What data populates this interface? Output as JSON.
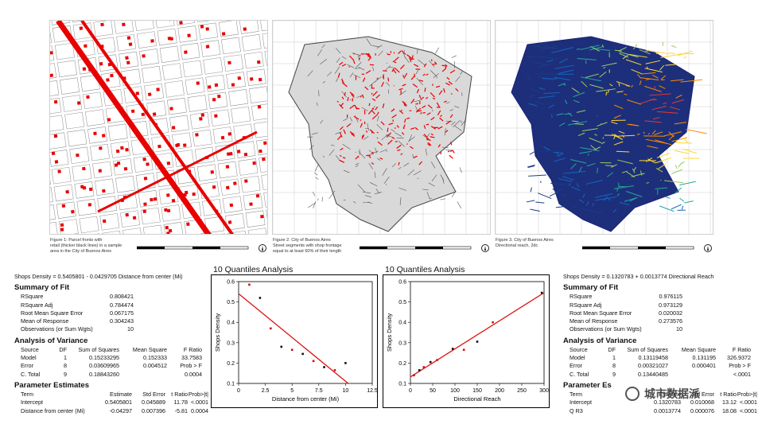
{
  "figures": {
    "fig1": {
      "caption": [
        "Figure 1: Parcel fronts with",
        "retail (thicker black lines) in a sample",
        "area in the City of Buenos Aires"
      ]
    },
    "fig2": {
      "caption": [
        "Figure 2. City of Buenos Aires",
        "Street segments with shop frontage",
        "equal to at least 60% of their length"
      ]
    },
    "fig3": {
      "caption": [
        "Figure 3. City of Buenos Aires",
        "Directional reach, 2dc"
      ]
    }
  },
  "left_stats": {
    "equation": "Shops Density = 0.5405801 - 0.0429705 Distance from center (Mi)",
    "fit_title": "Summary of Fit",
    "fit": [
      {
        "label": "RSquare",
        "value": "0.808421"
      },
      {
        "label": "RSquare Adj",
        "value": "0.784474"
      },
      {
        "label": "Root Mean Square Error",
        "value": "0.067175"
      },
      {
        "label": "Mean of Response",
        "value": "0.304243"
      },
      {
        "label": "Observations (or Sum Wgts)",
        "value": "10"
      }
    ],
    "anova_title": "Analysis of Variance",
    "anova_header": [
      "Source",
      "DF",
      "Sum of Squares",
      "Mean Square",
      "F Ratio"
    ],
    "anova": [
      [
        "Model",
        "1",
        "0.15233295",
        "0.152333",
        "33.7583"
      ],
      [
        "Error",
        "8",
        "0.03609965",
        "0.004512",
        "Prob > F"
      ],
      [
        "C. Total",
        "9",
        "0.18843260",
        "",
        "0.0004"
      ]
    ],
    "param_title": "Parameter Estimates",
    "param_header": [
      "Term",
      "Estimate",
      "Std Error",
      "t Ratio",
      "Prob>|t|"
    ],
    "params": [
      [
        "Intercept",
        "0.5405801",
        "0.045889",
        "11.78",
        "<.0001"
      ],
      [
        "Distance from center (Mi)",
        "-0.04297",
        "0.007396",
        "-5.81",
        "0.0004"
      ]
    ]
  },
  "right_stats": {
    "equation": "Shops Density = 0.1320783 + 0.0013774 Directional Reach",
    "fit_title": "Summary of Fit",
    "fit": [
      {
        "label": "RSquare",
        "value": "0.976115"
      },
      {
        "label": "RSquare Adj",
        "value": "0.973129"
      },
      {
        "label": "Root Mean Square Error",
        "value": "0.020032"
      },
      {
        "label": "Mean of Response",
        "value": "0.273576"
      },
      {
        "label": "Observations (or Sum Wgts)",
        "value": "10"
      }
    ],
    "anova_title": "Analysis of Variance",
    "anova_header": [
      "Source",
      "DF",
      "Sum of Squares",
      "Mean Square",
      "F Ratio"
    ],
    "anova": [
      [
        "Model",
        "1",
        "0.13119458",
        "0.131195",
        "326.9372"
      ],
      [
        "Error",
        "8",
        "0.00321027",
        "0.000401",
        "Prob > F"
      ],
      [
        "C. Total",
        "9",
        "0.13440485",
        "",
        "<.0001"
      ]
    ],
    "param_title": "Parameter Es",
    "param_header": [
      "Term",
      "Estimate",
      "Std Error",
      "t Ratio",
      "Prob>|t|"
    ],
    "params": [
      [
        "Intercept",
        "0.1320783",
        "0.010068",
        "13.12",
        "<.0001"
      ],
      [
        "Q R3",
        "0.0013774",
        "0.000076",
        "18.08",
        "<.0001"
      ]
    ]
  },
  "watermark": "城市数据派",
  "chart_data": [
    {
      "type": "scatter",
      "title": "10 Quantiles Analysis",
      "xlabel": "Distance from center (Mi)",
      "ylabel": "Shops Density",
      "xlim": [
        0,
        12.5
      ],
      "ylim": [
        0.1,
        0.6
      ],
      "xticks": [
        "0",
        "2.5",
        "5",
        "7.5",
        "10",
        "12.5"
      ],
      "yticks": [
        "0.1",
        "0.2",
        "0.3",
        "0.4",
        "0.5",
        "0.6"
      ],
      "x": [
        1.0,
        2.0,
        3.0,
        4.0,
        5.0,
        6.0,
        7.0,
        8.0,
        9.0,
        10.0
      ],
      "y": [
        0.585,
        0.52,
        0.37,
        0.28,
        0.265,
        0.245,
        0.21,
        0.18,
        0.165,
        0.2
      ],
      "fit_line": {
        "intercept": 0.5405801,
        "slope": -0.0429705
      },
      "colors": {
        "points": "#cc1111",
        "line": "#dd1111"
      }
    },
    {
      "type": "scatter",
      "title": "10 Quantiles Analysis",
      "xlabel": "Directional Reach",
      "ylabel": "Shops Density",
      "xlim": [
        0,
        300
      ],
      "ylim": [
        0.1,
        0.6
      ],
      "xticks": [
        "0",
        "50",
        "100",
        "150",
        "200",
        "250",
        "300"
      ],
      "yticks": [
        "0.1",
        "0.2",
        "0.3",
        "0.4",
        "0.5",
        "0.6"
      ],
      "x": [
        8,
        20,
        30,
        45,
        60,
        95,
        120,
        150,
        185,
        295
      ],
      "y": [
        0.14,
        0.165,
        0.18,
        0.205,
        0.215,
        0.27,
        0.265,
        0.305,
        0.4,
        0.545
      ],
      "fit_line": {
        "intercept": 0.1320783,
        "slope": 0.0013774
      },
      "colors": {
        "points": "#cc1111",
        "line": "#dd1111"
      }
    }
  ]
}
